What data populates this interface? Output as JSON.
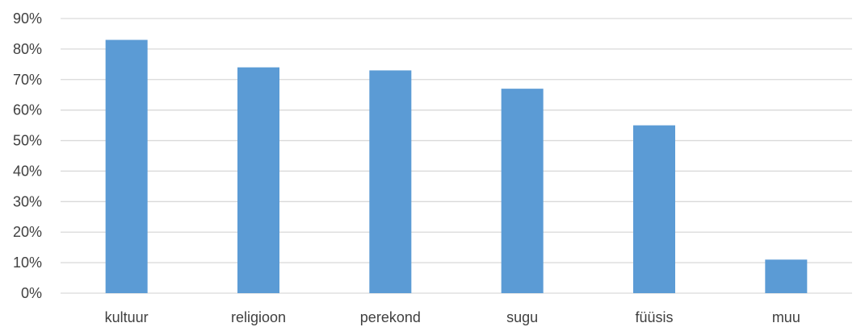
{
  "chart_data": {
    "type": "bar",
    "title": "",
    "xlabel": "",
    "ylabel": "",
    "categories": [
      "kultuur",
      "religioon",
      "perekond",
      "sugu",
      "füüsis",
      "muu"
    ],
    "values": [
      0.83,
      0.74,
      0.73,
      0.67,
      0.55,
      0.11
    ],
    "y_unit": "fraction",
    "ylim": [
      0,
      0.9
    ],
    "y_ticks": [
      "0%",
      "10%",
      "20%",
      "30%",
      "40%",
      "50%",
      "60%",
      "70%",
      "80%",
      "90%"
    ],
    "grid": true,
    "legend": "none",
    "bar_color": "#5b9bd5",
    "grid_color": "#d9d9d9",
    "text_color": "#404040"
  }
}
